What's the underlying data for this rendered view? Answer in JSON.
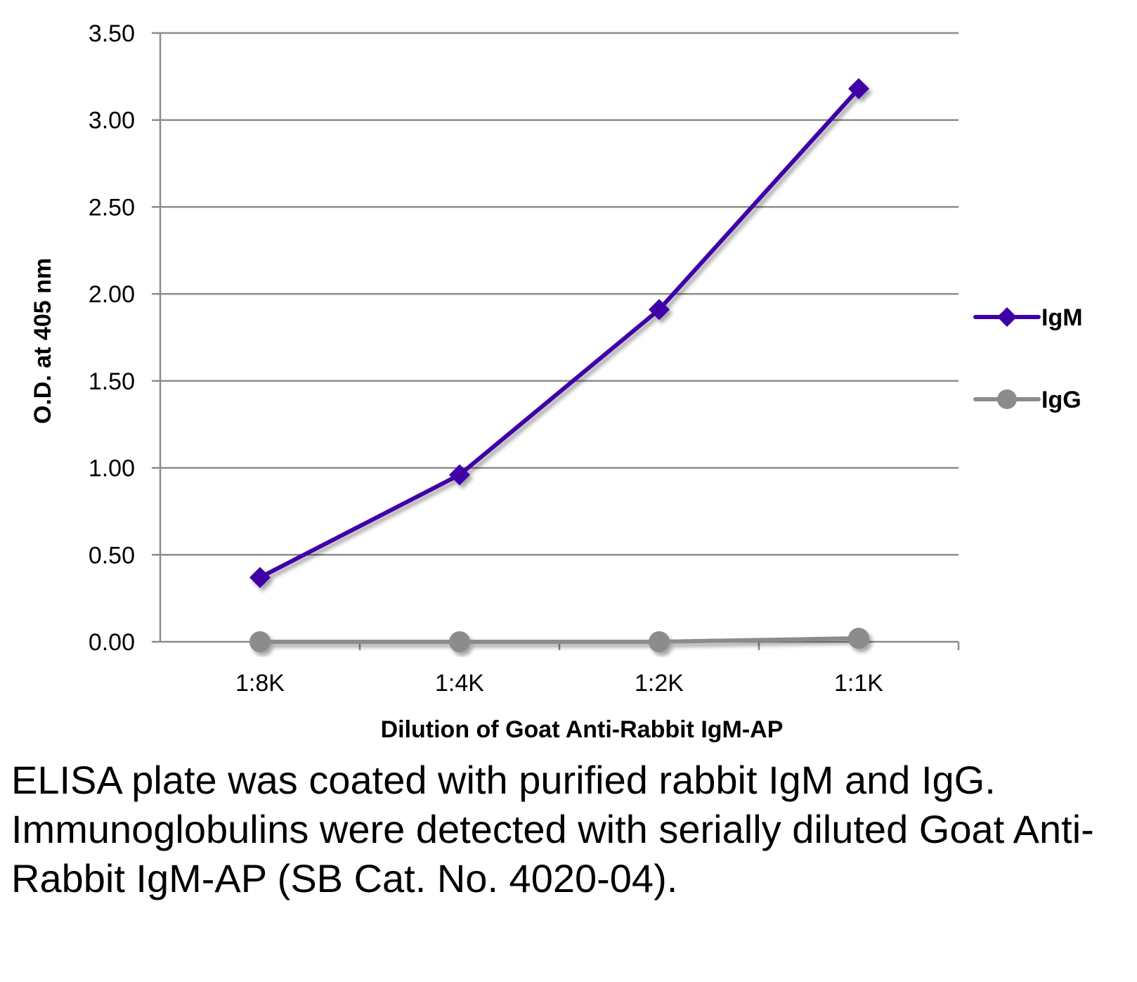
{
  "chart_data": {
    "type": "line",
    "categories": [
      "1:8K",
      "1:4K",
      "1:2K",
      "1:1K"
    ],
    "series": [
      {
        "name": "IgM",
        "values": [
          0.37,
          0.96,
          1.91,
          3.18
        ],
        "color": "#3f00a8",
        "marker": "diamond"
      },
      {
        "name": "IgG",
        "values": [
          0.0,
          0.0,
          0.0,
          0.02
        ],
        "color": "#8c8c8c",
        "marker": "circle"
      }
    ],
    "xlabel": "Dilution of Goat Anti-Rabbit IgM-AP",
    "ylabel": "O.D. at 405 nm",
    "ylim": [
      0,
      3.5
    ],
    "yticks": [
      "0.00",
      "0.50",
      "1.00",
      "1.50",
      "2.00",
      "2.50",
      "3.00",
      "3.50"
    ],
    "grid": true,
    "legend_position": "right"
  },
  "caption": "ELISA plate was coated with purified rabbit IgM and IgG.  Immunoglobulins were detected with serially diluted Goat Anti-Rabbit IgM-AP (SB Cat. No. 4020-04)."
}
